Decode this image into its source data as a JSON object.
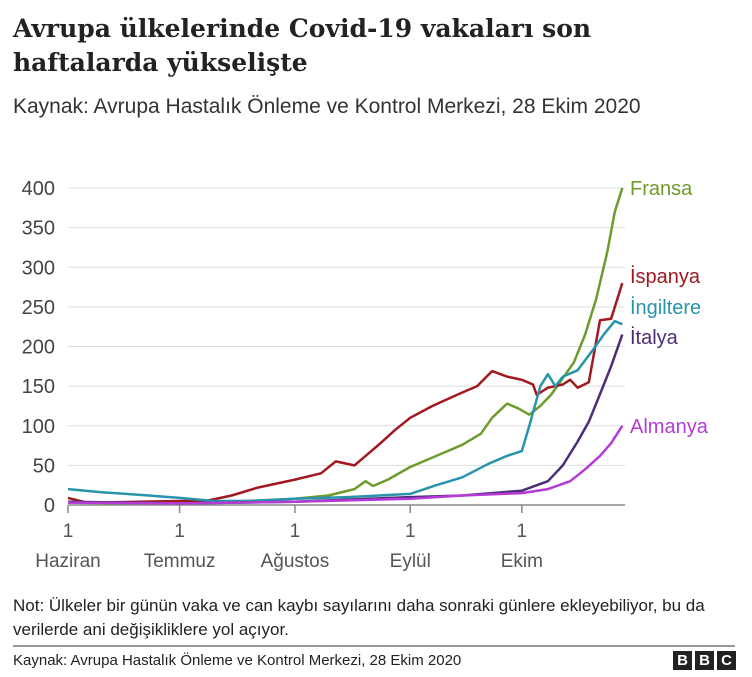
{
  "header": {
    "title": "Avrupa ülkelerinde Covid-19 vakaları son haftalarda yükselişte",
    "subtitle": "Kaynak: Avrupa Hastalık Önleme ve Kontrol Merkezi, 28 Ekim 2020"
  },
  "chart_data": {
    "type": "line",
    "title": "Avrupa ülkelerinde Covid-19 vakaları son haftalarda yükselişte",
    "ylim": [
      0,
      400
    ],
    "yticks": [
      0,
      50,
      100,
      150,
      200,
      250,
      300,
      350,
      400
    ],
    "xticks": [
      {
        "date": "2020-06-01",
        "day": "1",
        "month": "Haziran"
      },
      {
        "date": "2020-07-01",
        "day": "1",
        "month": "Temmuz"
      },
      {
        "date": "2020-08-01",
        "day": "1",
        "month": "Ağustos"
      },
      {
        "date": "2020-09-01",
        "day": "1",
        "month": "Eylül"
      },
      {
        "date": "2020-10-01",
        "day": "1",
        "month": "Ekim"
      }
    ],
    "grid": true,
    "legend": "direct labels at line ends (right)",
    "series": [
      {
        "name": "Fransa",
        "color": "#6e9b2c",
        "points": [
          [
            "2020-06-01",
            3
          ],
          [
            "2020-06-15",
            2
          ],
          [
            "2020-07-01",
            3
          ],
          [
            "2020-07-15",
            4
          ],
          [
            "2020-08-01",
            8
          ],
          [
            "2020-08-10",
            12
          ],
          [
            "2020-08-17",
            20
          ],
          [
            "2020-08-20",
            30
          ],
          [
            "2020-08-22",
            24
          ],
          [
            "2020-08-26",
            32
          ],
          [
            "2020-09-01",
            48
          ],
          [
            "2020-09-08",
            62
          ],
          [
            "2020-09-15",
            76
          ],
          [
            "2020-09-20",
            90
          ],
          [
            "2020-09-23",
            110
          ],
          [
            "2020-09-27",
            128
          ],
          [
            "2020-09-30",
            122
          ],
          [
            "2020-10-03",
            114
          ],
          [
            "2020-10-06",
            125
          ],
          [
            "2020-10-09",
            140
          ],
          [
            "2020-10-12",
            160
          ],
          [
            "2020-10-15",
            180
          ],
          [
            "2020-10-18",
            215
          ],
          [
            "2020-10-21",
            260
          ],
          [
            "2020-10-24",
            320
          ],
          [
            "2020-10-26",
            370
          ],
          [
            "2020-10-28",
            400
          ]
        ]
      },
      {
        "name": "İspanya",
        "color": "#a1181f",
        "points": [
          [
            "2020-06-01",
            9
          ],
          [
            "2020-06-06",
            3
          ],
          [
            "2020-06-20",
            4
          ],
          [
            "2020-07-01",
            5
          ],
          [
            "2020-07-08",
            5
          ],
          [
            "2020-07-15",
            12
          ],
          [
            "2020-07-22",
            22
          ],
          [
            "2020-08-01",
            32
          ],
          [
            "2020-08-08",
            40
          ],
          [
            "2020-08-12",
            55
          ],
          [
            "2020-08-17",
            50
          ],
          [
            "2020-08-20",
            62
          ],
          [
            "2020-08-24",
            78
          ],
          [
            "2020-08-28",
            95
          ],
          [
            "2020-09-01",
            110
          ],
          [
            "2020-09-07",
            125
          ],
          [
            "2020-09-14",
            140
          ],
          [
            "2020-09-19",
            150
          ],
          [
            "2020-09-23",
            169
          ],
          [
            "2020-09-27",
            162
          ],
          [
            "2020-10-01",
            158
          ],
          [
            "2020-10-04",
            152
          ],
          [
            "2020-10-05",
            139
          ],
          [
            "2020-10-08",
            148
          ],
          [
            "2020-10-12",
            152
          ],
          [
            "2020-10-14",
            158
          ],
          [
            "2020-10-16",
            148
          ],
          [
            "2020-10-19",
            155
          ],
          [
            "2020-10-22",
            233
          ],
          [
            "2020-10-25",
            235
          ],
          [
            "2020-10-28",
            280
          ]
        ]
      },
      {
        "name": "İngiltere",
        "color": "#2794ac",
        "points": [
          [
            "2020-06-01",
            20
          ],
          [
            "2020-06-10",
            16
          ],
          [
            "2020-06-20",
            13
          ],
          [
            "2020-07-01",
            9
          ],
          [
            "2020-07-10",
            5
          ],
          [
            "2020-07-20",
            5
          ],
          [
            "2020-08-01",
            8
          ],
          [
            "2020-08-15",
            10
          ],
          [
            "2020-09-01",
            14
          ],
          [
            "2020-09-08",
            25
          ],
          [
            "2020-09-15",
            35
          ],
          [
            "2020-09-22",
            52
          ],
          [
            "2020-09-27",
            62
          ],
          [
            "2020-10-01",
            68
          ],
          [
            "2020-10-03",
            100
          ],
          [
            "2020-10-06",
            150
          ],
          [
            "2020-10-08",
            165
          ],
          [
            "2020-10-10",
            150
          ],
          [
            "2020-10-12",
            162
          ],
          [
            "2020-10-16",
            170
          ],
          [
            "2020-10-20",
            195
          ],
          [
            "2020-10-23",
            215
          ],
          [
            "2020-10-26",
            232
          ],
          [
            "2020-10-28",
            228
          ]
        ]
      },
      {
        "name": "İtalya",
        "color": "#4b2e78",
        "points": [
          [
            "2020-06-01",
            4
          ],
          [
            "2020-07-01",
            2
          ],
          [
            "2020-08-01",
            4
          ],
          [
            "2020-09-01",
            10
          ],
          [
            "2020-09-15",
            12
          ],
          [
            "2020-10-01",
            18
          ],
          [
            "2020-10-08",
            30
          ],
          [
            "2020-10-12",
            50
          ],
          [
            "2020-10-16",
            80
          ],
          [
            "2020-10-19",
            105
          ],
          [
            "2020-10-22",
            140
          ],
          [
            "2020-10-25",
            175
          ],
          [
            "2020-10-28",
            215
          ]
        ]
      },
      {
        "name": "Almanya",
        "color": "#b53bd6",
        "points": [
          [
            "2020-06-01",
            3
          ],
          [
            "2020-07-01",
            2
          ],
          [
            "2020-08-01",
            4
          ],
          [
            "2020-09-01",
            8
          ],
          [
            "2020-09-15",
            12
          ],
          [
            "2020-10-01",
            15
          ],
          [
            "2020-10-08",
            20
          ],
          [
            "2020-10-14",
            30
          ],
          [
            "2020-10-18",
            45
          ],
          [
            "2020-10-22",
            62
          ],
          [
            "2020-10-25",
            78
          ],
          [
            "2020-10-28",
            100
          ]
        ]
      }
    ]
  },
  "footer": {
    "note": "Not: Ülkeler bir günün vaka ve can kaybı sayılarını daha sonraki günlere ekleyebiliyor, bu da verilerde ani değişikliklere yol açıyor.",
    "source": "Kaynak: Avrupa Hastalık Önleme ve Kontrol Merkezi, 28 Ekim 2020",
    "logo": [
      "B",
      "B",
      "C"
    ]
  }
}
